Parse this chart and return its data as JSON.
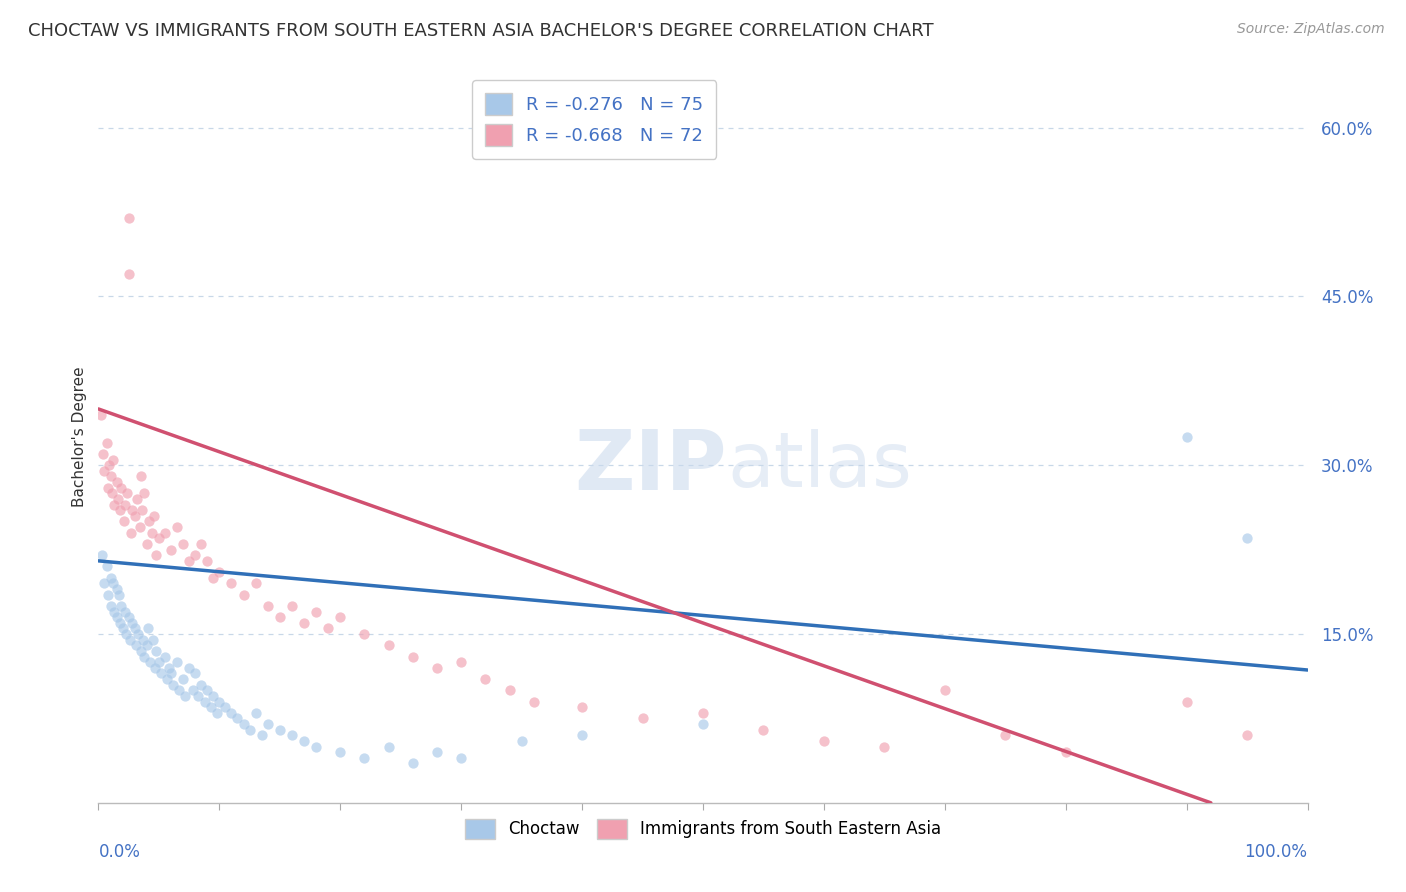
{
  "title": "CHOCTAW VS IMMIGRANTS FROM SOUTH EASTERN ASIA BACHELOR'S DEGREE CORRELATION CHART",
  "source_text": "Source: ZipAtlas.com",
  "ylabel": "Bachelor's Degree",
  "right_yticks": [
    0.15,
    0.3,
    0.45,
    0.6
  ],
  "right_yticklabels": [
    "15.0%",
    "30.0%",
    "45.0%",
    "60.0%"
  ],
  "watermark_zip": "ZIP",
  "watermark_atlas": "atlas",
  "legend_label_blue": "R = -0.276   N = 75",
  "legend_label_pink": "R = -0.668   N = 72",
  "bottom_legend": [
    "Choctaw",
    "Immigrants from South Eastern Asia"
  ],
  "blue_scatter_x": [
    0.003,
    0.005,
    0.007,
    0.008,
    0.01,
    0.01,
    0.012,
    0.013,
    0.015,
    0.015,
    0.017,
    0.018,
    0.019,
    0.02,
    0.022,
    0.023,
    0.025,
    0.026,
    0.028,
    0.03,
    0.031,
    0.033,
    0.035,
    0.037,
    0.038,
    0.04,
    0.041,
    0.043,
    0.045,
    0.047,
    0.048,
    0.05,
    0.052,
    0.055,
    0.057,
    0.058,
    0.06,
    0.062,
    0.065,
    0.067,
    0.07,
    0.072,
    0.075,
    0.078,
    0.08,
    0.082,
    0.085,
    0.088,
    0.09,
    0.093,
    0.095,
    0.098,
    0.1,
    0.105,
    0.11,
    0.115,
    0.12,
    0.125,
    0.13,
    0.135,
    0.14,
    0.15,
    0.16,
    0.17,
    0.18,
    0.2,
    0.22,
    0.24,
    0.26,
    0.28,
    0.3,
    0.35,
    0.4,
    0.5,
    0.9,
    0.95
  ],
  "blue_scatter_y": [
    0.22,
    0.195,
    0.21,
    0.185,
    0.2,
    0.175,
    0.195,
    0.17,
    0.19,
    0.165,
    0.185,
    0.16,
    0.175,
    0.155,
    0.17,
    0.15,
    0.165,
    0.145,
    0.16,
    0.155,
    0.14,
    0.15,
    0.135,
    0.145,
    0.13,
    0.14,
    0.155,
    0.125,
    0.145,
    0.12,
    0.135,
    0.125,
    0.115,
    0.13,
    0.11,
    0.12,
    0.115,
    0.105,
    0.125,
    0.1,
    0.11,
    0.095,
    0.12,
    0.1,
    0.115,
    0.095,
    0.105,
    0.09,
    0.1,
    0.085,
    0.095,
    0.08,
    0.09,
    0.085,
    0.08,
    0.075,
    0.07,
    0.065,
    0.08,
    0.06,
    0.07,
    0.065,
    0.06,
    0.055,
    0.05,
    0.045,
    0.04,
    0.05,
    0.035,
    0.045,
    0.04,
    0.055,
    0.06,
    0.07,
    0.325,
    0.235
  ],
  "pink_scatter_x": [
    0.002,
    0.004,
    0.005,
    0.007,
    0.008,
    0.009,
    0.01,
    0.011,
    0.012,
    0.013,
    0.015,
    0.016,
    0.018,
    0.019,
    0.021,
    0.022,
    0.024,
    0.025,
    0.027,
    0.028,
    0.03,
    0.032,
    0.034,
    0.036,
    0.038,
    0.04,
    0.042,
    0.044,
    0.046,
    0.048,
    0.05,
    0.055,
    0.06,
    0.065,
    0.07,
    0.075,
    0.08,
    0.085,
    0.09,
    0.095,
    0.1,
    0.11,
    0.12,
    0.13,
    0.14,
    0.15,
    0.16,
    0.17,
    0.18,
    0.19,
    0.2,
    0.22,
    0.24,
    0.26,
    0.28,
    0.3,
    0.32,
    0.34,
    0.36,
    0.4,
    0.45,
    0.5,
    0.55,
    0.6,
    0.65,
    0.7,
    0.75,
    0.8,
    0.9,
    0.95,
    0.025,
    0.035
  ],
  "pink_scatter_y": [
    0.345,
    0.31,
    0.295,
    0.32,
    0.28,
    0.3,
    0.29,
    0.275,
    0.305,
    0.265,
    0.285,
    0.27,
    0.26,
    0.28,
    0.25,
    0.265,
    0.275,
    0.52,
    0.24,
    0.26,
    0.255,
    0.27,
    0.245,
    0.26,
    0.275,
    0.23,
    0.25,
    0.24,
    0.255,
    0.22,
    0.235,
    0.24,
    0.225,
    0.245,
    0.23,
    0.215,
    0.22,
    0.23,
    0.215,
    0.2,
    0.205,
    0.195,
    0.185,
    0.195,
    0.175,
    0.165,
    0.175,
    0.16,
    0.17,
    0.155,
    0.165,
    0.15,
    0.14,
    0.13,
    0.12,
    0.125,
    0.11,
    0.1,
    0.09,
    0.085,
    0.075,
    0.08,
    0.065,
    0.055,
    0.05,
    0.1,
    0.06,
    0.045,
    0.09,
    0.06,
    0.47,
    0.29
  ],
  "blue_line_x": [
    0.0,
    1.0
  ],
  "blue_line_y": [
    0.215,
    0.118
  ],
  "pink_line_x": [
    0.0,
    0.92
  ],
  "pink_line_y": [
    0.35,
    0.0
  ],
  "scatter_alpha": 0.65,
  "scatter_size": 55,
  "dot_color_blue": "#a8c8e8",
  "dot_color_pink": "#f0a0b0",
  "line_color_blue": "#3070b8",
  "line_color_pink": "#d05070",
  "background_color": "#ffffff",
  "grid_color": "#c8d8e8",
  "axis_color": "#4472c4",
  "text_color": "#333333",
  "xlim": [
    0.0,
    1.0
  ],
  "ylim": [
    0.0,
    0.65
  ],
  "title_fontsize": 13,
  "source_fontsize": 10,
  "tick_label_fontsize": 12
}
